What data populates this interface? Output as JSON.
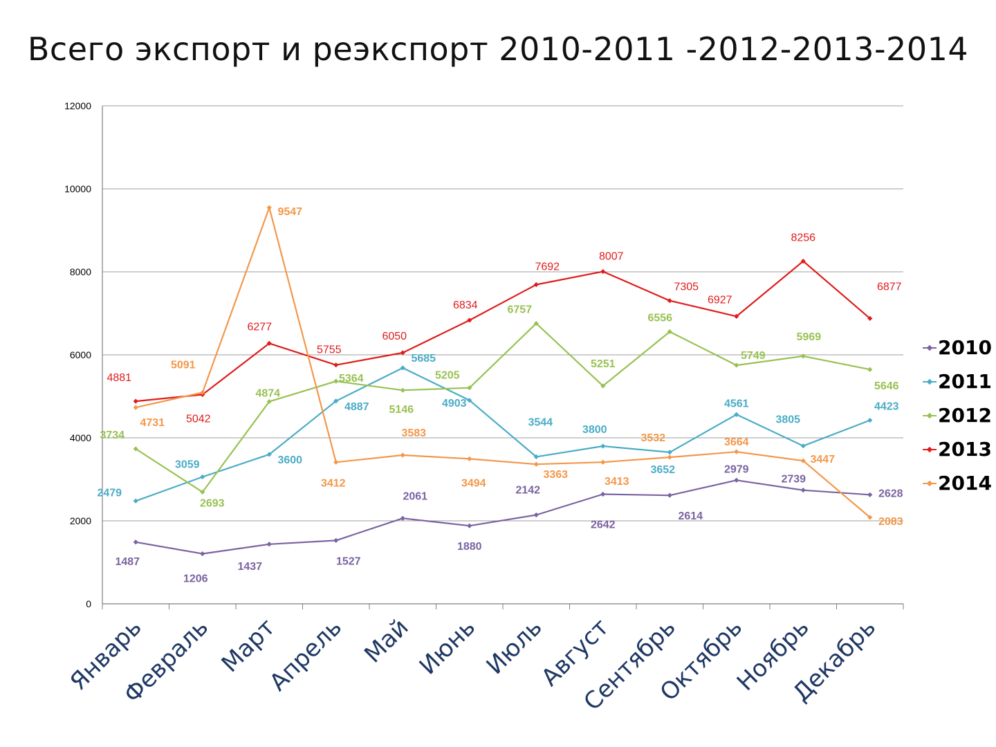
{
  "title": "Всего экспорт и реэкспорт 2010-2011 -2012-2013-2014",
  "chart_data": {
    "type": "line",
    "title": "Всего экспорт и реэкспорт 2010-2011 -2012-2013-2014",
    "xlabel": "",
    "ylabel": "",
    "categories": [
      "Январь",
      "Февраль",
      "Март",
      "Апрель",
      "Май",
      "Июнь",
      "Июль",
      "Август",
      "Сентябрь",
      "Октябрь",
      "Ноябрь",
      "Декабрь"
    ],
    "ylim": [
      0,
      12000
    ],
    "yticks": [
      "0",
      "2000",
      "4000",
      "6000",
      "8000",
      "10000",
      "12000"
    ],
    "grid": true,
    "legend_position": "right",
    "series": [
      {
        "name": "2010",
        "color": "#7A63A1",
        "values": [
          1487,
          1206,
          1437,
          1527,
          2061,
          1880,
          2142,
          2642,
          2614,
          2979,
          2739,
          2628
        ]
      },
      {
        "name": "2011",
        "color": "#4AACC6",
        "values": [
          2479,
          3059,
          3600,
          4887,
          5685,
          4903,
          3544,
          3800,
          3652,
          4561,
          3805,
          4423
        ]
      },
      {
        "name": "2012",
        "color": "#98C152",
        "values": [
          3734,
          2693,
          4874,
          5364,
          5146,
          5205,
          6757,
          5251,
          6556,
          5749,
          5969,
          5646
        ]
      },
      {
        "name": "2013",
        "color": "#E01B1B",
        "values": [
          4881,
          5042,
          6277,
          5755,
          6050,
          6834,
          7692,
          8007,
          7305,
          6927,
          8256,
          6877
        ]
      },
      {
        "name": "2014",
        "color": "#F3974A",
        "values": [
          4731,
          5091,
          9547,
          3412,
          3583,
          3494,
          3363,
          3413,
          3532,
          3664,
          3447,
          2083
        ]
      }
    ]
  }
}
